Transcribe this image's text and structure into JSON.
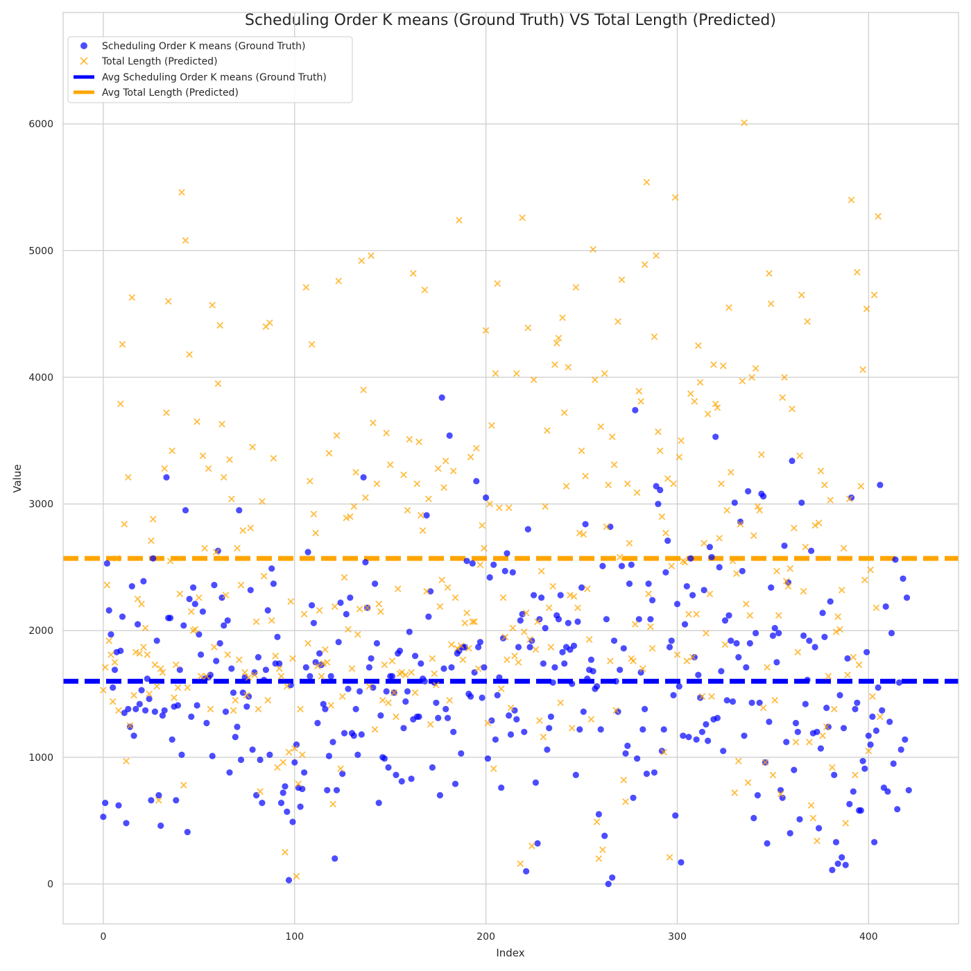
{
  "chart_data": {
    "type": "scatter",
    "title": "Scheduling Order K means  (Ground Truth) VS Total Length (Predicted)",
    "xlabel": "Index",
    "ylabel": "Value",
    "xlim": [
      -21,
      447
    ],
    "ylim": [
      -315,
      6880
    ],
    "xticks": [
      0,
      100,
      200,
      300,
      400
    ],
    "yticks": [
      0,
      1000,
      2000,
      3000,
      4000,
      5000,
      6000
    ],
    "grid": true,
    "legend_position": "top-left",
    "series": [
      {
        "name": "Scheduling Order K means (Ground Truth)",
        "marker": "circle",
        "color": "#0000ff",
        "x_start": 0,
        "values": [
          530,
          640,
          2530,
          2160,
          1970,
          1550,
          1690,
          1830,
          620,
          1840,
          2110,
          1350,
          480,
          1380,
          1240,
          2350,
          1170,
          1380,
          2050,
          1420,
          1530,
          2390,
          1370,
          1620,
          1460,
          660,
          2570,
          1360,
          1920,
          700,
          460,
          1330,
          1370,
          3210,
          2100,
          2100,
          1140,
          1400,
          660,
          1410,
          1690,
          1020,
          2040,
          2950,
          410,
          2250,
          1320,
          2340,
          2210,
          1410,
          1970,
          1810,
          2150,
          1620,
          1270,
          1630,
          1650,
          1010,
          2360,
          1760,
          2630,
          1900,
          2260,
          2040,
          1360,
          2080,
          880,
          1700,
          1510,
          1160,
          1240,
          2950,
          980,
          1510,
          1630,
          1400,
          1480,
          2320,
          1060,
          1670,
          700,
          1790,
          980,
          640,
          1610,
          1690,
          2160,
          1020,
          2490,
          2370,
          1740,
          1950,
          1740,
          640,
          720,
          770,
          570,
          30,
          1570,
          490,
          960,
          1100,
          760,
          610,
          750,
          880,
          1710,
          2620,
          1640,
          2200,
          2060,
          1750,
          1270,
          1820,
          1730,
          1420,
          1380,
          740,
          1010,
          1640,
          1120,
          200,
          740,
          1910,
          2220,
          870,
          1190,
          2130,
          1540,
          2260,
          1190,
          1170,
          1380,
          1020,
          1520,
          1180,
          3210,
          2540,
          2180,
          1710,
          1780,
          1550,
          2370,
          1900,
          640,
          1330,
          1000,
          990,
          1520,
          920,
          1640,
          1640,
          1510,
          860,
          1820,
          1840,
          810,
          1230,
          1440,
          1520,
          1990,
          830,
          1300,
          1800,
          1320,
          1320,
          1740,
          1620,
          1600,
          2910,
          2110,
          2310,
          920,
          1590,
          1430,
          1310,
          700,
          3840,
          1700,
          1380,
          1310,
          3540,
          1710,
          1200,
          790,
          1820,
          1840,
          1030,
          1870,
          1870,
          2550,
          1500,
          1480,
          2530,
          1670,
          3180,
          1870,
          1910,
          1470,
          1710,
          3050,
          990,
          2420,
          1290,
          2520,
          1140,
          1490,
          1630,
          760,
          1940,
          2470,
          2610,
          1330,
          1180,
          2460,
          1370,
          1300,
          1870,
          2080,
          2130,
          1200,
          100,
          2800,
          1870,
          1920,
          2280,
          800,
          320,
          2090,
          2260,
          1740,
          2020,
          1060,
          1230,
          1320,
          1590,
          1710,
          2120,
          2090,
          2280,
          1830,
          1740,
          1870,
          2060,
          1850,
          1580,
          1880,
          860,
          2070,
          1220,
          2340,
          1360,
          2840,
          1620,
          1690,
          1770,
          1680,
          1540,
          1560,
          550,
          1220,
          2510,
          380,
          2090,
          0,
          2820,
          50,
          1920,
          1600,
          1360,
          1690,
          2510,
          1860,
          1030,
          1090,
          2370,
          2520,
          680,
          3740,
          990,
          2090,
          1670,
          1220,
          1380,
          870,
          2370,
          2090,
          2240,
          880,
          3140,
          3000,
          3110,
          1050,
          1220,
          2460,
          2710,
          1870,
          1920,
          1490,
          540,
          2210,
          1560,
          170,
          1170,
          2050,
          2350,
          1160,
          2570,
          2280,
          1790,
          1140,
          1650,
          1470,
          1200,
          2320,
          1260,
          1130,
          2660,
          2580,
          1300,
          3530,
          1310,
          2500,
          1680,
          1050,
          2080,
          1450,
          2120,
          1920,
          1440,
          3010,
          1900,
          1790,
          2860,
          2470,
          1170,
          1710,
          3100,
          1900,
          1430,
          520,
          1980,
          700,
          1430,
          3080,
          3060,
          960,
          320,
          1280,
          2340,
          1960,
          2020,
          1750,
          1980,
          740,
          680,
          2670,
          1120,
          2380,
          400,
          3340,
          900,
          1270,
          1200,
          510,
          3010,
          1960,
          1420,
          1610,
          1920,
          2630,
          1190,
          1870,
          1200,
          440,
          1070,
          2140,
          1950,
          1390,
          1240,
          2230,
          110,
          860,
          330,
          160,
          1490,
          210,
          1230,
          150,
          1780,
          630,
          3050,
          730,
          1380,
          1430,
          580,
          580,
          970,
          910,
          1830,
          1170,
          1100,
          1320,
          330,
          1210,
          1550,
          3150,
          1370,
          760,
          2190,
          730,
          1280,
          1980,
          950,
          2560,
          590,
          1590,
          1060,
          2410,
          1140,
          2260,
          740
        ]
      },
      {
        "name": "Total Length (Predicted)",
        "marker": "x",
        "color": "#ffa500",
        "x_start": 0,
        "values": [
          1530,
          1710,
          2360,
          1920,
          1810,
          1440,
          1750,
          2570,
          1370,
          3790,
          4260,
          2840,
          970,
          3210,
          1250,
          4630,
          1490,
          1830,
          2250,
          1820,
          2210,
          1870,
          2020,
          1810,
          1500,
          2710,
          2880,
          1730,
          1560,
          660,
          1700,
          1670,
          3280,
          3720,
          4600,
          2550,
          3420,
          1470,
          1730,
          1550,
          2290,
          5460,
          780,
          5080,
          1550,
          4180,
          2150,
          2000,
          2010,
          3650,
          2260,
          1640,
          3380,
          2650,
          1640,
          3280,
          1380,
          4570,
          1870,
          2620,
          3950,
          4410,
          3630,
          3210,
          2280,
          1810,
          3350,
          3040,
          1370,
          1450,
          2650,
          1770,
          2360,
          2790,
          1670,
          1490,
          1630,
          2810,
          3450,
          1650,
          2070,
          1380,
          730,
          3020,
          2430,
          4400,
          1450,
          4430,
          2080,
          3360,
          1800,
          920,
          1700,
          1640,
          960,
          250,
          1560,
          1040,
          2230,
          1780,
          1070,
          60,
          790,
          1380,
          1020,
          2130,
          4710,
          1900,
          3180,
          4260,
          2920,
          2770,
          1720,
          2160,
          1640,
          1740,
          1850,
          1750,
          3400,
          1410,
          630,
          2190,
          3540,
          4760,
          910,
          1480,
          2420,
          2890,
          2010,
          2900,
          1700,
          2980,
          3250,
          1970,
          2170,
          4920,
          3900,
          3050,
          2180,
          1560,
          4960,
          3640,
          1220,
          3160,
          2210,
          2150,
          1450,
          1730,
          3560,
          1430,
          3310,
          1760,
          1510,
          1320,
          2330,
          1660,
          1670,
          3230,
          1650,
          2950,
          3510,
          1670,
          4820,
          1510,
          3160,
          3490,
          2910,
          2790,
          4690,
          2310,
          3040,
          1260,
          1780,
          1660,
          1570,
          3280,
          2190,
          2400,
          3130,
          3340,
          2340,
          1450,
          1890,
          3260,
          2260,
          1860,
          5240,
          1880,
          1770,
          2060,
          2140,
          1860,
          3370,
          2070,
          2070,
          3440,
          1700,
          2520,
          2830,
          2650,
          4370,
          1270,
          3000,
          3620,
          910,
          4030,
          4740,
          2970,
          1540,
          2260,
          1950,
          1770,
          2970,
          1390,
          2020,
          1800,
          4030,
          1750,
          160,
          5260,
          1990,
          2140,
          4390,
          1930,
          300,
          3980,
          1850,
          2070,
          1290,
          2470,
          1160,
          2980,
          3580,
          2180,
          1870,
          2350,
          4100,
          4270,
          4310,
          1430,
          4470,
          3720,
          3140,
          4080,
          2280,
          1230,
          2270,
          4710,
          2180,
          2770,
          3420,
          2760,
          3220,
          2330,
          1930,
          1300,
          5010,
          3980,
          490,
          200,
          3610,
          270,
          4030,
          2820,
          3150,
          1760,
          3530,
          3310,
          1370,
          4440,
          2580,
          4770,
          820,
          650,
          3160,
          2690,
          1780,
          1760,
          2050,
          3090,
          3890,
          3810,
          1700,
          4890,
          5540,
          2290,
          2030,
          1860,
          4320,
          4960,
          3570,
          3420,
          2900,
          1040,
          2770,
          3200,
          210,
          2510,
          3160,
          5420,
          1810,
          3370,
          3500,
          2550,
          2540,
          1760,
          2130,
          3870,
          1790,
          3810,
          2130,
          4250,
          3960,
          1480,
          2690,
          1980,
          3710,
          2290,
          1480,
          4100,
          3790,
          3760,
          2730,
          3160,
          4090,
          1890,
          2950,
          4550,
          3250,
          2550,
          720,
          2450,
          970,
          2840,
          3970,
          6010,
          2210,
          800,
          2120,
          4000,
          2750,
          4070,
          2980,
          2950,
          3390,
          1390,
          960,
          1710,
          4820,
          4580,
          860,
          1450,
          2470,
          2120,
          710,
          3840,
          4000,
          2390,
          2350,
          2490,
          3750,
          2810,
          1120,
          1830,
          3380,
          4650,
          2310,
          2660,
          4440,
          1120,
          620,
          520,
          2830,
          340,
          2850,
          3260,
          1170,
          3150,
          1240,
          1640,
          3030,
          920,
          1380,
          1990,
          2110,
          2010,
          2320,
          2650,
          480,
          1650,
          3040,
          5400,
          1790,
          860,
          4830,
          1730,
          3140,
          4060,
          2400,
          4540,
          1050,
          2480,
          1480,
          4650,
          2180,
          5270,
          1320
        ]
      }
    ],
    "averages": [
      {
        "name": "Avg Scheduling Order K means (Ground Truth)",
        "value": 1600,
        "color": "#0000ff",
        "style": "dashed"
      },
      {
        "name": "Avg Total Length (Predicted)",
        "value": 2570,
        "color": "#ffa500",
        "style": "dashed"
      }
    ]
  }
}
